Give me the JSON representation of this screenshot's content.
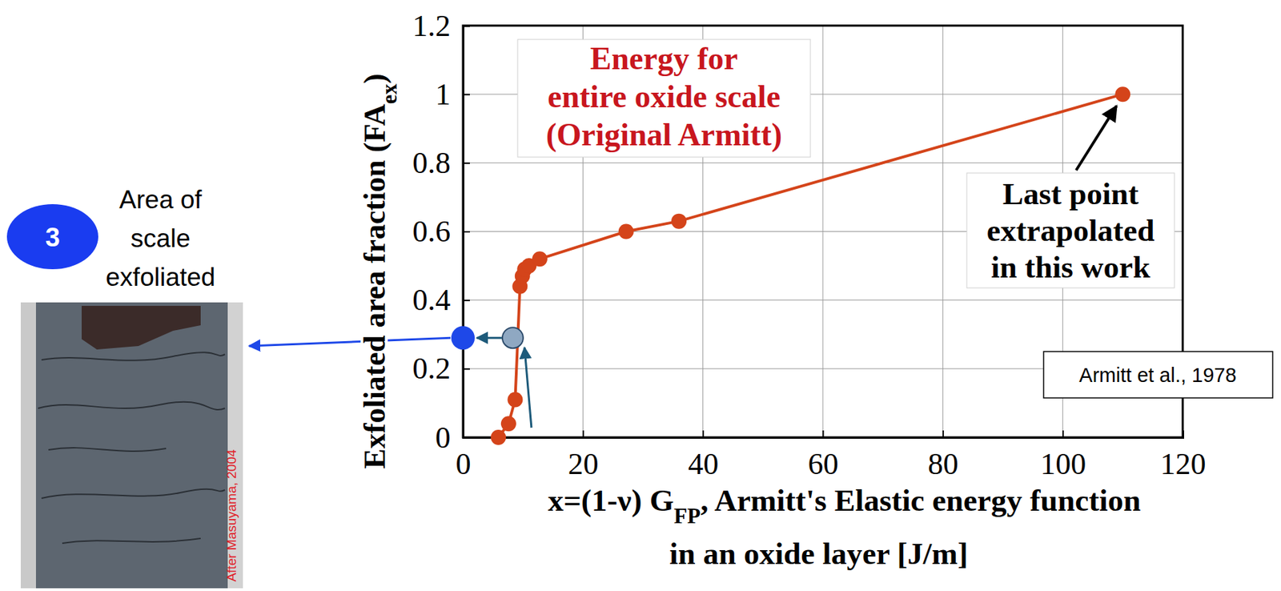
{
  "chart_data": {
    "type": "line",
    "y_label": [
      {
        "text": "Exfoliated area fraction (FA"
      },
      {
        "text": "ex",
        "sub": true
      },
      {
        "text": ")"
      }
    ],
    "x_label": [
      [
        {
          "text": "x=(1-ν) G"
        },
        {
          "text": "FP",
          "sub": true
        },
        {
          "text": ", Armitt's Elastic energy function"
        }
      ],
      [
        {
          "text": "in an oxide layer [J/m]"
        }
      ]
    ],
    "xlim": [
      0,
      120
    ],
    "xticks": [
      0,
      20,
      40,
      60,
      80,
      100,
      120
    ],
    "ylim": [
      0,
      1.2
    ],
    "yticks": [
      0,
      0.2,
      0.4,
      0.6,
      0.8,
      1,
      1.2
    ],
    "grid": true,
    "legend": "top-left",
    "series": [
      {
        "name_lines": [
          "Energy for",
          "entire oxide scale",
          "(Original Armitt)"
        ],
        "color": "#d4441a",
        "marker": "circle",
        "x": [
          5.9,
          7.6,
          8.7,
          9.5,
          9.9,
          10.3,
          11.0,
          12.8,
          27.2,
          36.0,
          110.0
        ],
        "values": [
          0,
          0.04,
          0.11,
          0.44,
          0.47,
          0.49,
          0.5,
          0.52,
          0.6,
          0.63,
          1.0
        ]
      }
    ],
    "readout": {
      "x": 8.3,
      "y": 0.29
    },
    "annotations": [
      {
        "lines": [
          "Last point",
          "extrapolated",
          "in this work"
        ]
      },
      {
        "text": "Armitt et al., 1978"
      }
    ],
    "step_label": 3,
    "photo_caption": [
      "Area of",
      "scale",
      "exfoliated"
    ],
    "photo_credit": "After Masuyama, 2004"
  }
}
